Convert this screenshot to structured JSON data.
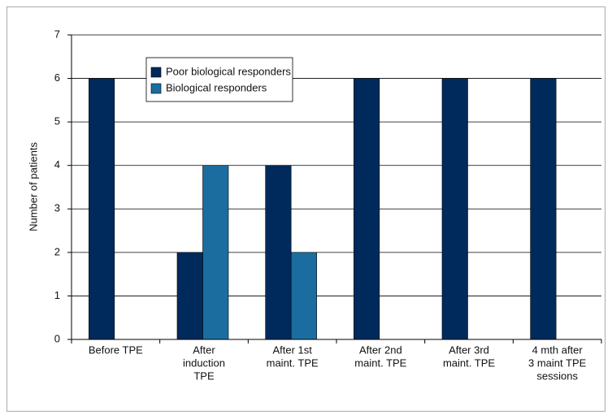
{
  "chart_data": {
    "type": "bar",
    "y_label": "Number of patients",
    "categories": [
      [
        "Before TPE"
      ],
      [
        "After",
        "induction",
        "TPE"
      ],
      [
        "After 1st",
        "maint. TPE"
      ],
      [
        "After 2nd",
        "maint. TPE"
      ],
      [
        "After 3rd",
        "maint. TPE"
      ],
      [
        "4 mth after",
        "3 maint TPE",
        "sessions"
      ]
    ],
    "series": [
      {
        "name": "Poor biological responders",
        "color": "#002a5c",
        "values": [
          6,
          2,
          4,
          6,
          6,
          6
        ]
      },
      {
        "name": "Biological responders",
        "color": "#1b6d9f",
        "values": [
          0,
          4,
          2,
          0,
          0,
          0
        ]
      }
    ],
    "ylim": [
      0,
      7
    ],
    "yticks": [
      0,
      1,
      2,
      3,
      4,
      5,
      6,
      7
    ],
    "grid": true
  }
}
